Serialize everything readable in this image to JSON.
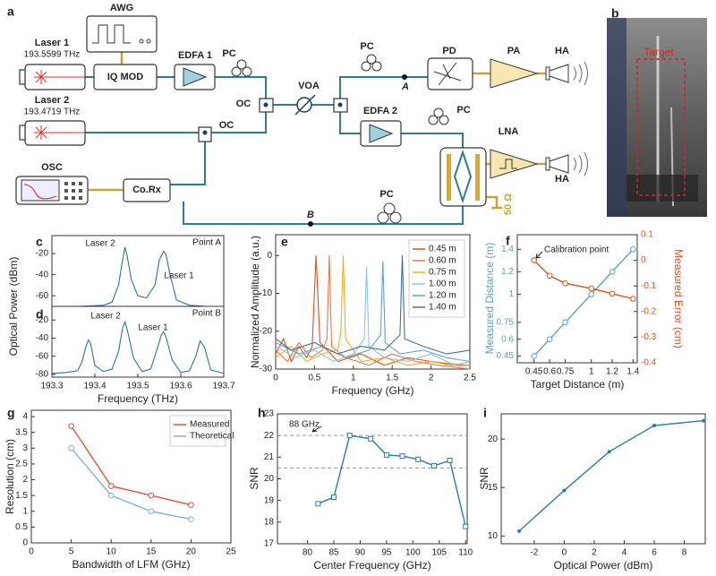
{
  "diagram": {
    "panel": "a",
    "awg": "AWG",
    "laser1": "Laser 1",
    "laser1_freq": "193.5599 THz",
    "iq_mod": "IQ MOD",
    "edfa1": "EDFA 1",
    "pc1": "PC",
    "oc1": "OC",
    "laser2": "Laser 2",
    "laser2_freq": "193.4719 THz",
    "oc2": "OC",
    "voa": "VOA",
    "pc2": "PC",
    "pd": "PD",
    "pa": "PA",
    "ha1": "HA",
    "point_a": "A",
    "edfa2": "EDFA 2",
    "pc3": "PC",
    "lna": "LNA",
    "ha2": "HA",
    "load": "50 Ω",
    "osc": "OSC",
    "co_rx": "Co.Rx",
    "pc4": "PC",
    "point_b": "B"
  },
  "photo": {
    "panel": "b",
    "target": "Target"
  },
  "chart_data": [
    {
      "type": "line",
      "panel": "c",
      "y_label": "Optical Power (dBm)",
      "annotations": [
        "Laser 2",
        "Laser 1",
        "Point A"
      ],
      "xlim": [
        193.3,
        193.7
      ],
      "ylim": [
        -70,
        -3
      ],
      "yticks": [
        -20,
        -40,
        -60
      ],
      "series": [
        {
          "color": "#2f6fa8",
          "x": [
            193.3,
            193.36,
            193.42,
            193.44,
            193.455,
            193.465,
            193.47,
            193.475,
            193.485,
            193.5,
            193.52,
            193.54,
            193.55,
            193.56,
            193.565,
            193.575,
            193.59,
            193.62,
            193.66,
            193.7
          ],
          "values": [
            -70,
            -70,
            -69,
            -66,
            -50,
            -25,
            -14,
            -22,
            -45,
            -60,
            -62,
            -50,
            -26,
            -18,
            -20,
            -40,
            -64,
            -69,
            -70,
            -70
          ]
        }
      ]
    },
    {
      "type": "line",
      "panel": "d",
      "x_label": "Frequency (THz)",
      "annotations": [
        "Laser 2",
        "Laser 1",
        "Point B"
      ],
      "xlim": [
        193.3,
        193.7
      ],
      "ylim": [
        -83,
        -5
      ],
      "xticks": [
        193.3,
        193.4,
        193.5,
        193.6,
        193.7
      ],
      "yticks": [
        -20,
        -40,
        -60,
        -80
      ],
      "series": [
        {
          "color": "#2f6fa8",
          "x": [
            193.3,
            193.33,
            193.36,
            193.37,
            193.38,
            193.385,
            193.39,
            193.4,
            193.42,
            193.44,
            193.455,
            193.465,
            193.47,
            193.475,
            193.49,
            193.51,
            193.53,
            193.545,
            193.555,
            193.56,
            193.565,
            193.58,
            193.6,
            193.62,
            193.635,
            193.645,
            193.655,
            193.67,
            193.7
          ],
          "values": [
            -79,
            -78,
            -76,
            -66,
            -48,
            -42,
            -46,
            -70,
            -77,
            -74,
            -55,
            -28,
            -22,
            -30,
            -62,
            -77,
            -74,
            -52,
            -36,
            -33,
            -38,
            -64,
            -78,
            -76,
            -60,
            -43,
            -50,
            -75,
            -79
          ]
        }
      ]
    },
    {
      "type": "line",
      "panel": "e",
      "x_label": "Frequency (GHz)",
      "y_label": "Normalized Amplitude (a.u.)",
      "legend": "upper right",
      "xlim": [
        0,
        2.5
      ],
      "ylim": [
        -30,
        5.5
      ],
      "xticks": [
        0,
        0.5,
        1,
        1.5,
        2,
        2.5
      ],
      "yticks": [
        0,
        -10,
        -20,
        -30
      ],
      "series": [
        {
          "name": "0.45 m",
          "color": "#d9541a",
          "x": [
            0,
            0.1,
            0.2,
            0.3,
            0.4,
            0.47,
            0.52,
            0.57,
            0.8,
            1.1,
            1.4,
            1.7,
            2.0,
            2.3,
            2.5
          ],
          "values": [
            -26,
            -22,
            -28,
            -24,
            -27,
            -24,
            0,
            -23,
            -28,
            -26,
            -29,
            -27,
            -28,
            -29,
            -29
          ]
        },
        {
          "name": "0.60 m",
          "color": "#e8794a",
          "x": [
            0,
            0.15,
            0.3,
            0.45,
            0.6,
            0.66,
            0.69,
            0.72,
            0.9,
            1.2,
            1.5,
            1.8,
            2.1,
            2.5
          ],
          "values": [
            -25,
            -28,
            -23,
            -27,
            -25,
            -22,
            0,
            -24,
            -27,
            -29,
            -26,
            -28,
            -29,
            -30
          ]
        },
        {
          "name": "0.75 m",
          "color": "#edb120",
          "x": [
            0,
            0.2,
            0.4,
            0.6,
            0.8,
            0.84,
            0.87,
            0.9,
            1.1,
            1.4,
            1.7,
            2.0,
            2.5
          ],
          "values": [
            -27,
            -24,
            -28,
            -26,
            -25,
            -20,
            0,
            -22,
            -28,
            -27,
            -29,
            -28,
            -29
          ]
        },
        {
          "name": "1.00 m",
          "color": "#8fc5de",
          "x": [
            0,
            0.25,
            0.5,
            0.75,
            1.0,
            1.14,
            1.17,
            1.2,
            1.4,
            1.7,
            2.0,
            2.3,
            2.5
          ],
          "values": [
            -24,
            -27,
            -25,
            -28,
            -26,
            -22,
            -3,
            -24,
            -27,
            -28,
            -26,
            -29,
            -28
          ]
        },
        {
          "name": "1.20 m",
          "color": "#5fa3cc",
          "x": [
            0,
            0.3,
            0.6,
            0.9,
            1.2,
            1.35,
            1.38,
            1.41,
            1.6,
            1.9,
            2.2,
            2.5
          ],
          "values": [
            -23,
            -26,
            -24,
            -27,
            -25,
            -21,
            -1.5,
            -23,
            -26,
            -25,
            -27,
            -28
          ]
        },
        {
          "name": "1.40 m",
          "color": "#3f6f9f",
          "x": [
            0,
            0.2,
            0.5,
            0.8,
            1.1,
            1.4,
            1.6,
            1.63,
            1.66,
            1.9,
            2.2,
            2.5
          ],
          "values": [
            -22,
            -25,
            -23,
            -26,
            -24,
            -25,
            -21,
            0,
            -22,
            -24,
            -26,
            -25
          ]
        }
      ]
    },
    {
      "type": "line",
      "panel": "f",
      "x_label": "Target Distance (m)",
      "y_label": "Measured Distance (m)",
      "y2_label": "Measured Error (cm)",
      "annotations": [
        "Calibration point"
      ],
      "marker": "circle",
      "xlim": [
        0.29,
        1.44
      ],
      "ylim": [
        0.39,
        1.53
      ],
      "y2lim": [
        -0.4,
        0.1
      ],
      "xticks": [
        0.45,
        0.6,
        0.75,
        1,
        1.2,
        1.4
      ],
      "yticks": [
        0.45,
        0.6,
        0.75,
        1,
        1.2,
        1.4
      ],
      "y2ticks": [
        0.1,
        0,
        -0.1,
        -0.2,
        -0.3,
        -0.4
      ],
      "series": [
        {
          "color": "#5aa0c8",
          "x": [
            0.45,
            0.6,
            0.75,
            1,
            1.2,
            1.4
          ],
          "values": [
            0.45,
            0.6,
            0.75,
            1,
            1.2,
            1.4
          ]
        },
        {
          "color": "#d9541a",
          "axis": "y2",
          "x": [
            0.45,
            0.6,
            0.75,
            1,
            1.2,
            1.4
          ],
          "values": [
            0,
            -0.06,
            -0.09,
            -0.11,
            -0.13,
            -0.15
          ]
        }
      ]
    },
    {
      "type": "line",
      "panel": "g",
      "x_label": "Bandwidth of LFM (GHz)",
      "y_label": "Resolution (cm)",
      "legend": "upper right",
      "marker": "circle",
      "xlim": [
        0,
        25
      ],
      "ylim": [
        0,
        4.2
      ],
      "xticks": [
        0,
        5,
        10,
        15,
        20,
        25
      ],
      "yticks": [
        0,
        0.5,
        1,
        1.5,
        2,
        2.5,
        3,
        3.5,
        4
      ],
      "series": [
        {
          "name": "Measured",
          "color": "#e0533f",
          "x": [
            5,
            10,
            15,
            20
          ],
          "values": [
            3.7,
            1.8,
            1.5,
            1.2
          ]
        },
        {
          "name": "Theoretical",
          "color": "#7fb2dd",
          "x": [
            5,
            10,
            15,
            20
          ],
          "values": [
            3.0,
            1.5,
            1.0,
            0.75
          ]
        }
      ]
    },
    {
      "type": "line",
      "panel": "h",
      "x_label": "Center Frequency (GHz)",
      "y_label": "SNR",
      "annotations": [
        "88 GHz"
      ],
      "reference_lines": [
        22,
        20.5
      ],
      "marker": "square",
      "xlim": [
        74.3,
        110.3
      ],
      "ylim": [
        17,
        23
      ],
      "xticks": [
        80,
        85,
        90,
        95,
        100,
        105,
        110
      ],
      "yticks": [
        17,
        18,
        19,
        20,
        21,
        22,
        23
      ],
      "series": [
        {
          "color": "#2a7ab0",
          "x": [
            82,
            85,
            88,
            92,
            95,
            98,
            101,
            104,
            107,
            110
          ],
          "values": [
            18.85,
            19.15,
            22.0,
            21.85,
            21.1,
            21.05,
            20.9,
            20.6,
            20.85,
            17.8
          ]
        }
      ]
    },
    {
      "type": "line",
      "panel": "i",
      "x_label": "Optical Power (dBm)",
      "y_label": "SNR",
      "marker": "dot",
      "xlim": [
        -4.2,
        9.4
      ],
      "ylim": [
        9.2,
        22.6
      ],
      "xticks": [
        -2,
        0,
        2,
        4,
        6,
        8
      ],
      "yticks": [
        10,
        15,
        20
      ],
      "series": [
        {
          "color": "#2a7ab0",
          "x": [
            -3,
            0,
            3,
            6,
            9.3
          ],
          "values": [
            10.5,
            14.7,
            18.7,
            21.4,
            21.9
          ]
        }
      ]
    }
  ]
}
